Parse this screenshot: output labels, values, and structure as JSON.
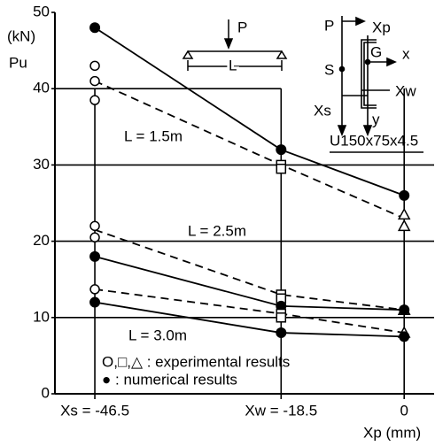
{
  "chart_data": {
    "type": "line",
    "y_label": "Pu",
    "y_unit": "(kN)",
    "x_label": "Xp (mm)",
    "x": [
      -46.5,
      -18.5,
      0
    ],
    "xlim": [
      -52.5,
      4.5
    ],
    "xticks": [
      {
        "value": -46.5,
        "label": "Xs = -46.5"
      },
      {
        "value": -18.5,
        "label": "Xw = -18.5"
      },
      0
    ],
    "ylim": [
      0,
      50
    ],
    "yticks": [
      0,
      10,
      20,
      30,
      40,
      50
    ],
    "grid": true,
    "color": "#000000",
    "series": [
      {
        "name": "L = 1.5m",
        "numerical": [
          48,
          32,
          26
        ],
        "experimental_line": [
          41,
          30,
          23
        ],
        "experimental": [
          [
            43,
            41,
            38.5
          ],
          [
            30,
            29.5
          ],
          [
            23.5,
            22
          ]
        ]
      },
      {
        "name": "L = 2.5m",
        "numerical": [
          18,
          11.5,
          11
        ],
        "experimental_line": [
          21.5,
          13,
          11
        ],
        "experimental": [
          [
            22,
            20.5
          ],
          [
            13,
            12.5
          ],
          [
            11,
            11
          ]
        ]
      },
      {
        "name": "L = 3.0m",
        "numerical": [
          12,
          8,
          7.5
        ],
        "experimental_line": [
          13.7,
          10.5,
          8
        ],
        "experimental": [
          [
            13.7
          ],
          [
            10.5,
            10
          ],
          [
            8
          ]
        ]
      }
    ],
    "legend": [
      "O,□,△ : experimental results",
      "● : numerical results"
    ],
    "section_label": "U150x75x4.5",
    "inset_beam": {
      "load": "P",
      "span": "L"
    },
    "inset_section": {
      "load": "P",
      "xp": "Xp",
      "centroid": "G",
      "shear_center": "S",
      "x_axis": "x",
      "y_axis": "y",
      "xw": "Xw",
      "xs": "Xs"
    }
  }
}
